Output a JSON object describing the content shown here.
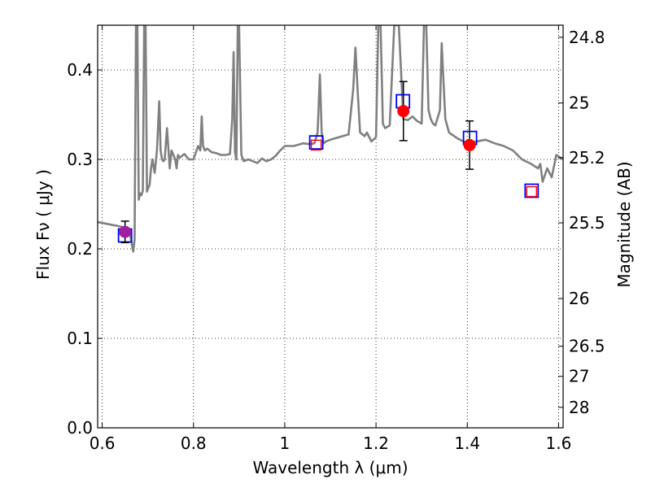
{
  "chart_data": {
    "type": "line",
    "xlabel": "Wavelength  λ (μm)",
    "ylabel": "Flux  Fν  ( μJy )",
    "y2label": "Magnitude (AB)",
    "xlim": [
      0.59,
      1.61
    ],
    "ylim": [
      0.0,
      0.45
    ],
    "grid": true,
    "x_ticks": [
      0.6,
      0.8,
      1.0,
      1.2,
      1.4,
      1.6
    ],
    "x_tick_labels": [
      "0.6",
      "0.8",
      "1",
      "1.2",
      "1.4",
      "1.6"
    ],
    "y_ticks": [
      0.0,
      0.1,
      0.2,
      0.3,
      0.4
    ],
    "y_tick_labels": [
      "0.0",
      "0.1",
      "0.2",
      "0.3",
      "0.4"
    ],
    "mag_ticks": [
      {
        "mag": 24.8,
        "label": "24.8"
      },
      {
        "mag": 25.0,
        "label": "25"
      },
      {
        "mag": 25.2,
        "label": "25.2"
      },
      {
        "mag": 25.5,
        "label": "25.5"
      },
      {
        "mag": 26.0,
        "label": "26"
      },
      {
        "mag": 26.5,
        "label": "26.5"
      },
      {
        "mag": 27.0,
        "label": "27"
      },
      {
        "mag": 28.0,
        "label": "28"
      }
    ],
    "spectrum": {
      "color": "#808080",
      "x": [
        0.59,
        0.6,
        0.61,
        0.62,
        0.63,
        0.64,
        0.65,
        0.655,
        0.66,
        0.665,
        0.668,
        0.671,
        0.674,
        0.677,
        0.68,
        0.683,
        0.686,
        0.689,
        0.692,
        0.695,
        0.698,
        0.701,
        0.704,
        0.707,
        0.71,
        0.715,
        0.72,
        0.725,
        0.728,
        0.731,
        0.734,
        0.737,
        0.742,
        0.748,
        0.752,
        0.756,
        0.76,
        0.763,
        0.766,
        0.77,
        0.78,
        0.79,
        0.8,
        0.81,
        0.815,
        0.818,
        0.821,
        0.825,
        0.83,
        0.84,
        0.85,
        0.86,
        0.87,
        0.88,
        0.885,
        0.888,
        0.891,
        0.894,
        0.897,
        0.9,
        0.905,
        0.91,
        0.92,
        0.93,
        0.94,
        0.95,
        0.96,
        0.97,
        0.98,
        0.99,
        1.0,
        1.02,
        1.04,
        1.055,
        1.065,
        1.072,
        1.077,
        1.081,
        1.085,
        1.09,
        1.1,
        1.12,
        1.14,
        1.15,
        1.155,
        1.16,
        1.165,
        1.17,
        1.175,
        1.18,
        1.19,
        1.2,
        1.205,
        1.21,
        1.215,
        1.22,
        1.23,
        1.24,
        1.25,
        1.26,
        1.27,
        1.28,
        1.29,
        1.3,
        1.305,
        1.31,
        1.315,
        1.32,
        1.325,
        1.33,
        1.34,
        1.344,
        1.348,
        1.352,
        1.36,
        1.38,
        1.4,
        1.42,
        1.44,
        1.46,
        1.48,
        1.5,
        1.52,
        1.54,
        1.555,
        1.56,
        1.565,
        1.575,
        1.585,
        1.595,
        1.61
      ],
      "y": [
        0.23,
        0.229,
        0.228,
        0.227,
        0.226,
        0.225,
        0.223,
        0.222,
        0.219,
        0.205,
        0.197,
        0.21,
        0.45,
        0.45,
        0.255,
        0.262,
        0.26,
        0.265,
        0.45,
        0.45,
        0.264,
        0.268,
        0.272,
        0.29,
        0.3,
        0.285,
        0.31,
        0.365,
        0.31,
        0.3,
        0.298,
        0.3,
        0.335,
        0.29,
        0.31,
        0.305,
        0.3,
        0.29,
        0.305,
        0.302,
        0.306,
        0.3,
        0.3,
        0.315,
        0.31,
        0.348,
        0.315,
        0.31,
        0.312,
        0.308,
        0.307,
        0.305,
        0.305,
        0.306,
        0.345,
        0.42,
        0.308,
        0.3,
        0.45,
        0.45,
        0.305,
        0.298,
        0.3,
        0.298,
        0.296,
        0.301,
        0.298,
        0.3,
        0.304,
        0.31,
        0.315,
        0.315,
        0.318,
        0.317,
        0.318,
        0.33,
        0.395,
        0.33,
        0.318,
        0.32,
        0.322,
        0.325,
        0.328,
        0.378,
        0.425,
        0.375,
        0.33,
        0.328,
        0.326,
        0.33,
        0.32,
        0.325,
        0.45,
        0.45,
        0.34,
        0.335,
        0.338,
        0.45,
        0.45,
        0.345,
        0.344,
        0.348,
        0.343,
        0.34,
        0.45,
        0.45,
        0.355,
        0.345,
        0.34,
        0.338,
        0.355,
        0.43,
        0.385,
        0.345,
        0.33,
        0.323,
        0.318,
        0.32,
        0.322,
        0.318,
        0.315,
        0.31,
        0.3,
        0.295,
        0.29,
        0.295,
        0.275,
        0.29,
        0.28,
        0.305,
        0.3
      ],
      "note_clipped_lines_at_top": true
    },
    "series": [
      {
        "kind": "observed",
        "marker": "circle",
        "color": "#ff0000",
        "points": [
          {
            "x": 0.65,
            "y": 0.219,
            "err": 0.012,
            "color": "#a020a0"
          },
          {
            "x": 1.26,
            "y": 0.354,
            "err": 0.033,
            "color": "#ff0000"
          },
          {
            "x": 1.405,
            "y": 0.316,
            "err": 0.027,
            "color": "#ff0000"
          }
        ]
      },
      {
        "kind": "model_blue",
        "marker": "square-open",
        "color": "#0000ff",
        "points": [
          {
            "x": 0.65,
            "y": 0.215
          },
          {
            "x": 1.069,
            "y": 0.319
          },
          {
            "x": 1.259,
            "y": 0.365
          },
          {
            "x": 1.406,
            "y": 0.324
          },
          {
            "x": 1.541,
            "y": 0.265
          }
        ]
      },
      {
        "kind": "model_red",
        "marker": "square-open",
        "color": "#ff0000",
        "points": [
          {
            "x": 1.069,
            "y": 0.316
          },
          {
            "x": 1.541,
            "y": 0.264
          }
        ]
      }
    ]
  }
}
